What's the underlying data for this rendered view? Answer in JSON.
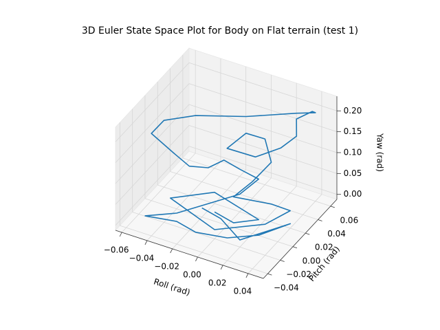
{
  "chart_data": {
    "type": "line3d",
    "title": "3D Euler State Space Plot for Body on Flat terrain (test 1)",
    "xlabel": "Roll (rad)",
    "ylabel": "Pitch (rad)",
    "zlabel": "Yaw (rad)",
    "xlim": [
      -0.065,
      0.052
    ],
    "ylim": [
      -0.047,
      0.07
    ],
    "zlim": [
      -0.012,
      0.235
    ],
    "xticks": [
      {
        "value": -0.06,
        "label": "−0.06"
      },
      {
        "value": -0.04,
        "label": "−0.04"
      },
      {
        "value": -0.02,
        "label": "−0.02"
      },
      {
        "value": 0,
        "label": "0.00"
      },
      {
        "value": 0.02,
        "label": "0.02"
      },
      {
        "value": 0.04,
        "label": "0.04"
      }
    ],
    "yticks": [
      {
        "value": -0.04,
        "label": "−0.04"
      },
      {
        "value": -0.02,
        "label": "−0.02"
      },
      {
        "value": 0,
        "label": "0.00"
      },
      {
        "value": 0.02,
        "label": "0.02"
      },
      {
        "value": 0.04,
        "label": "0.04"
      },
      {
        "value": 0.06,
        "label": "0.06"
      }
    ],
    "zticks": [
      {
        "value": 0,
        "label": "0.00"
      },
      {
        "value": 0.05,
        "label": "0.05"
      },
      {
        "value": 0.1,
        "label": "0.10"
      },
      {
        "value": 0.15,
        "label": "0.15"
      },
      {
        "value": 0.2,
        "label": "0.20"
      }
    ],
    "grid": true,
    "series": [
      {
        "color": "#1f77b4",
        "x": [
          -0.01,
          0.01,
          0.02,
          -0.02,
          -0.04,
          0.0,
          0.03,
          0.04,
          0.02,
          0.0,
          0.01,
          0.02,
          0.01,
          0.0,
          -0.01,
          0.005,
          0.02,
          0.03,
          0.025,
          0.035,
          0.04,
          0.03,
          0.0,
          -0.03,
          -0.05,
          -0.055,
          -0.04,
          -0.03,
          -0.02,
          -0.01,
          0.0,
          0.01,
          0.0,
          -0.03,
          -0.05,
          -0.03,
          -0.01,
          0.01,
          0.03,
          0.045,
          0.02,
          0.0,
          -0.02
        ],
        "y": [
          0.0,
          -0.01,
          0.01,
          0.02,
          -0.01,
          -0.02,
          0.0,
          0.02,
          0.03,
          0.01,
          0.02,
          0.03,
          0.04,
          0.03,
          0.02,
          0.035,
          0.045,
          0.05,
          0.06,
          0.065,
          0.06,
          0.05,
          0.03,
          0.01,
          0.0,
          -0.01,
          -0.005,
          0.0,
          0.01,
          0.015,
          0.02,
          0.03,
          0.02,
          -0.02,
          -0.03,
          -0.02,
          -0.03,
          -0.02,
          -0.01,
          0.01,
          -0.02,
          -0.01,
          0.0
        ],
        "z": [
          0.01,
          0.02,
          0.005,
          0.015,
          0.03,
          0.01,
          0.02,
          0.03,
          0.01,
          0.04,
          0.07,
          0.11,
          0.14,
          0.16,
          0.13,
          0.1,
          0.12,
          0.15,
          0.17,
          0.19,
          0.2,
          0.205,
          0.2,
          0.205,
          0.19,
          0.17,
          0.13,
          0.1,
          0.09,
          0.11,
          0.09,
          0.06,
          0.03,
          0.02,
          0.01,
          0.0,
          0.01,
          0.0,
          0.01,
          0.02,
          0.005,
          0.02,
          0.01
        ]
      }
    ]
  }
}
